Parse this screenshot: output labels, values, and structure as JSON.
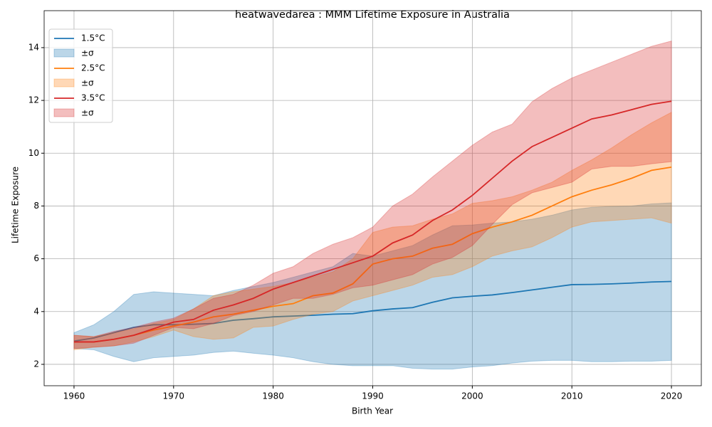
{
  "chart_data": {
    "type": "line",
    "title": "heatwavedarea : MMM Lifetime Exposure in Australia",
    "x_label": "Birth Year",
    "y_label": "Lifetime Exposure",
    "x": [
      1960,
      1962,
      1964,
      1966,
      1968,
      1970,
      1972,
      1974,
      1976,
      1978,
      1980,
      1982,
      1984,
      1986,
      1988,
      1990,
      1992,
      1994,
      1996,
      1998,
      2000,
      2002,
      2004,
      2006,
      2008,
      2010,
      2012,
      2014,
      2016,
      2018,
      2020
    ],
    "series": [
      {
        "name": "1.5°C",
        "color": "#1f77b4",
        "values": [
          2.88,
          3.0,
          3.2,
          3.4,
          3.5,
          3.5,
          3.52,
          3.55,
          3.67,
          3.73,
          3.8,
          3.83,
          3.86,
          3.9,
          3.92,
          4.03,
          4.1,
          4.15,
          4.35,
          4.52,
          4.58,
          4.63,
          4.72,
          4.82,
          4.92,
          5.02,
          5.03,
          5.05,
          5.08,
          5.12,
          5.14
        ]
      },
      {
        "name": "±σ",
        "color": "#1f77b4",
        "lower": [
          2.6,
          2.55,
          2.3,
          2.1,
          2.25,
          2.3,
          2.35,
          2.45,
          2.5,
          2.42,
          2.35,
          2.25,
          2.1,
          2.0,
          1.95,
          1.95,
          1.95,
          1.85,
          1.82,
          1.82,
          1.9,
          1.95,
          2.05,
          2.12,
          2.15,
          2.15,
          2.1,
          2.1,
          2.12,
          2.12,
          2.15
        ],
        "upper": [
          3.2,
          3.5,
          4.0,
          4.65,
          4.75,
          4.7,
          4.65,
          4.6,
          4.8,
          4.95,
          5.1,
          5.3,
          5.5,
          5.7,
          6.2,
          6.1,
          6.3,
          6.5,
          6.9,
          7.25,
          7.28,
          7.35,
          7.4,
          7.5,
          7.65,
          7.85,
          7.95,
          7.98,
          8.0,
          8.08,
          8.12
        ]
      },
      {
        "name": "2.5°C",
        "color": "#ff7f0e",
        "values": [
          2.85,
          2.85,
          2.95,
          3.1,
          3.3,
          3.45,
          3.6,
          3.8,
          3.9,
          4.05,
          4.2,
          4.3,
          4.6,
          4.7,
          5.05,
          5.8,
          6.0,
          6.1,
          6.4,
          6.55,
          6.95,
          7.2,
          7.4,
          7.65,
          8.0,
          8.35,
          8.6,
          8.8,
          9.05,
          9.35,
          9.47
        ]
      },
      {
        "name": "±σ",
        "color": "#ff7f0e",
        "lower": [
          2.55,
          2.65,
          2.7,
          2.85,
          3.05,
          3.3,
          3.05,
          2.95,
          3.0,
          3.4,
          3.45,
          3.7,
          3.9,
          4.0,
          4.4,
          4.6,
          4.8,
          5.0,
          5.3,
          5.4,
          5.7,
          6.1,
          6.3,
          6.45,
          6.8,
          7.2,
          7.4,
          7.45,
          7.5,
          7.55,
          7.35
        ],
        "upper": [
          3.1,
          3.05,
          3.2,
          3.35,
          3.55,
          3.7,
          4.1,
          4.6,
          4.75,
          4.85,
          4.95,
          5.1,
          5.3,
          5.5,
          6.0,
          7.0,
          7.2,
          7.25,
          7.5,
          7.7,
          8.1,
          8.2,
          8.35,
          8.6,
          8.9,
          9.35,
          9.75,
          10.2,
          10.7,
          11.15,
          11.55
        ]
      },
      {
        "name": "3.5°C",
        "color": "#d62728",
        "values": [
          2.85,
          2.85,
          2.95,
          3.1,
          3.35,
          3.6,
          3.7,
          4.05,
          4.25,
          4.5,
          4.85,
          5.1,
          5.35,
          5.6,
          5.85,
          6.1,
          6.6,
          6.9,
          7.45,
          7.85,
          8.4,
          9.05,
          9.7,
          10.25,
          10.6,
          10.95,
          11.3,
          11.45,
          11.65,
          11.85,
          11.97
        ]
      },
      {
        "name": "±σ",
        "color": "#d62728",
        "lower": [
          2.6,
          2.65,
          2.7,
          2.8,
          3.1,
          3.4,
          3.35,
          3.55,
          3.85,
          4.0,
          4.25,
          4.5,
          4.5,
          4.65,
          4.9,
          5.0,
          5.2,
          5.4,
          5.8,
          6.05,
          6.5,
          7.3,
          8.05,
          8.5,
          8.7,
          8.9,
          9.4,
          9.5,
          9.5,
          9.6,
          9.68
        ],
        "upper": [
          3.1,
          3.05,
          3.25,
          3.4,
          3.6,
          3.75,
          4.1,
          4.5,
          4.65,
          5.0,
          5.45,
          5.7,
          6.2,
          6.55,
          6.8,
          7.2,
          8.0,
          8.45,
          9.1,
          9.7,
          10.3,
          10.8,
          11.1,
          11.95,
          12.45,
          12.85,
          13.15,
          13.45,
          13.75,
          14.05,
          14.25
        ]
      }
    ],
    "xlim": [
      1957,
      2023
    ],
    "xticks": [
      1960,
      1970,
      1980,
      1990,
      2000,
      2010,
      2020
    ],
    "ylim": [
      1.19,
      15.4
    ],
    "yticks": [
      2,
      4,
      6,
      8,
      10,
      12,
      14
    ],
    "grid": true,
    "legend": "upper left"
  }
}
